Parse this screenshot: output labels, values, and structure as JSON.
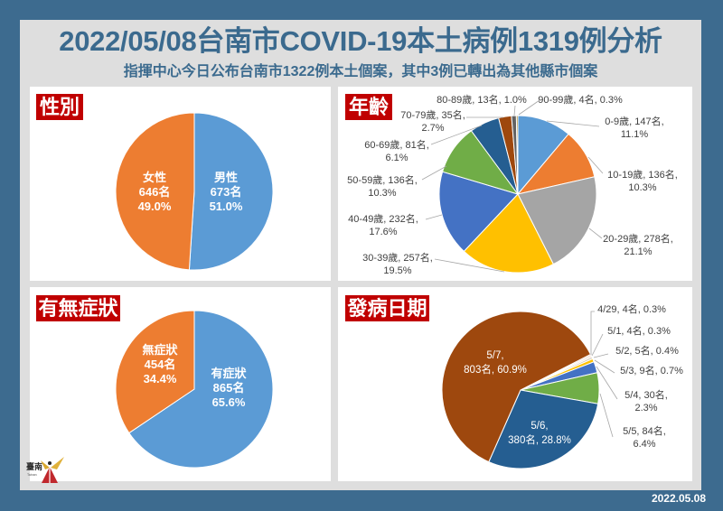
{
  "header": {
    "title": "2022/05/08台南市COVID-19本土病例1319例分析",
    "subtitle": "指揮中心今日公布台南市1322例本土個案，其中3例已轉出為其他縣市個案"
  },
  "footer": {
    "date": "2022.05.08"
  },
  "logo": {
    "text": "臺南",
    "latin": "Tainan"
  },
  "colors": {
    "frame": "#3d6b8f",
    "panel": "#dedede",
    "title": "#3b6a8e",
    "badge": "#c00000",
    "label_text": "#404040",
    "leader_line": "#a6a6a6"
  },
  "chart_data": [
    {
      "type": "pie",
      "title": "性別",
      "values": [
        673,
        646
      ],
      "colors": [
        "#5b9bd5",
        "#ed7d31"
      ],
      "labels": [
        [
          "男性",
          "673名",
          "51.0%"
        ],
        [
          "女性",
          "646名",
          "49.0%"
        ]
      ]
    },
    {
      "type": "pie",
      "title": "年齡",
      "values": [
        147,
        136,
        278,
        257,
        232,
        136,
        81,
        35,
        13,
        4
      ],
      "colors": [
        "#5b9bd5",
        "#ed7d31",
        "#a5a5a5",
        "#ffc000",
        "#4472c4",
        "#70ad47",
        "#255e91",
        "#9e480e",
        "#636363",
        "#997300"
      ],
      "labels": [
        [
          "0-9歲, 147名,",
          "11.1%"
        ],
        [
          "10-19歲, 136名,",
          "10.3%"
        ],
        [
          "20-29歲, 278名,",
          "21.1%"
        ],
        [
          "30-39歲, 257名,",
          "19.5%"
        ],
        [
          "40-49歲, 232名,",
          "17.6%"
        ],
        [
          "50-59歲, 136名,",
          "10.3%"
        ],
        [
          "60-69歲, 81名,",
          "6.1%"
        ],
        [
          "70-79歲, 35名,",
          "2.7%"
        ],
        [
          "80-89歲, 13名, 1.0%"
        ],
        [
          "90-99歲, 4名, 0.3%"
        ]
      ]
    },
    {
      "type": "pie",
      "title": "有無症狀",
      "values": [
        865,
        454
      ],
      "colors": [
        "#5b9bd5",
        "#ed7d31"
      ],
      "labels": [
        [
          "有症狀",
          "865名",
          "65.6%"
        ],
        [
          "無症狀",
          "454名",
          "34.4%"
        ]
      ]
    },
    {
      "type": "pie",
      "title": "發病日期",
      "values": [
        4,
        4,
        5,
        9,
        30,
        84,
        380,
        803
      ],
      "colors": [
        "#e9b8a0",
        "#e8cdb5",
        "#d6c8b0",
        "#ffc000",
        "#4472c4",
        "#70ad47",
        "#255e91",
        "#9e480e"
      ],
      "labels": [
        [
          "4/29, 4名, 0.3%"
        ],
        [
          "5/1, 4名, 0.3%"
        ],
        [
          "5/2, 5名, 0.4%"
        ],
        [
          "5/3, 9名, 0.7%"
        ],
        [
          "5/4, 30名,",
          "2.3%"
        ],
        [
          "5/5, 84名,",
          "6.4%"
        ],
        [
          "5/6,",
          "380名, 28.8%"
        ],
        [
          "5/7,",
          "803名, 60.9%"
        ]
      ]
    }
  ]
}
